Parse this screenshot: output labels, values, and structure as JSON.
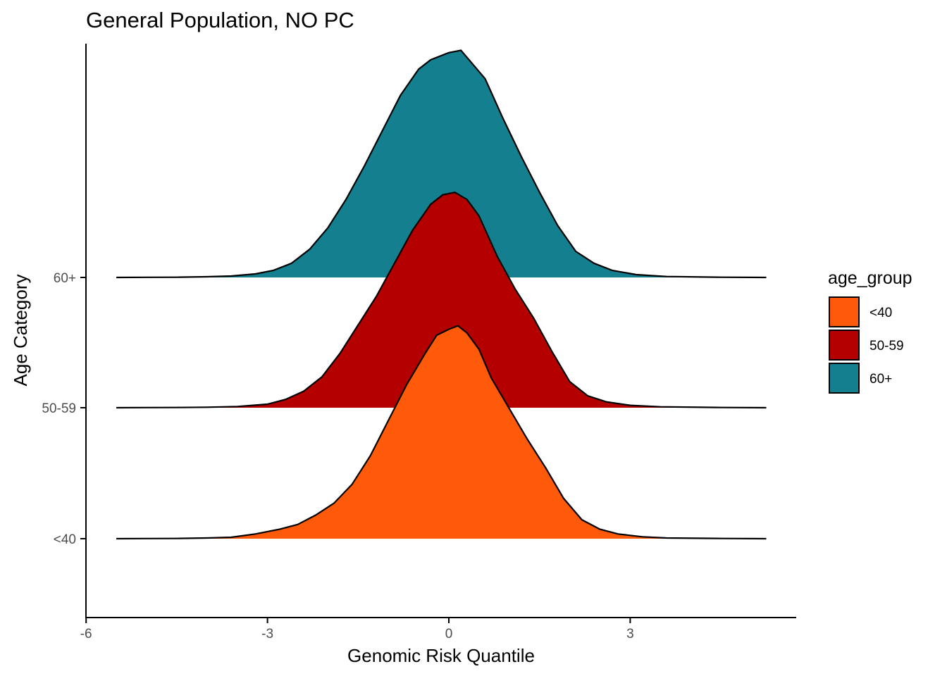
{
  "chart_data": {
    "type": "ridgeline",
    "title": "General Population, NO PC",
    "xlabel": "Genomic Risk Quantile",
    "ylabel": "Age Category",
    "xlim": [
      -6,
      5.8
    ],
    "x_ticks": [
      -6,
      -3,
      0,
      3
    ],
    "x_tick_labels": [
      "-6",
      "-3",
      "0",
      "3"
    ],
    "categories": [
      "<40",
      "50-59",
      "60+"
    ],
    "legend": {
      "title": "age_group",
      "position": "right",
      "entries": [
        "<40",
        "50-59",
        "60+"
      ]
    },
    "grid": false,
    "series": [
      {
        "name": "<40",
        "color": "#FF5A0A",
        "points": [
          [
            -5.5,
            0
          ],
          [
            -5,
            0.0005
          ],
          [
            -4.5,
            0.001
          ],
          [
            -4,
            0.003
          ],
          [
            -3.6,
            0.006
          ],
          [
            -3.2,
            0.02
          ],
          [
            -3,
            0.03
          ],
          [
            -2.8,
            0.04
          ],
          [
            -2.5,
            0.06
          ],
          [
            -2.2,
            0.1
          ],
          [
            -1.9,
            0.15
          ],
          [
            -1.6,
            0.23
          ],
          [
            -1.3,
            0.35
          ],
          [
            -1,
            0.5
          ],
          [
            -0.7,
            0.65
          ],
          [
            -0.4,
            0.78
          ],
          [
            -0.2,
            0.86
          ],
          [
            0,
            0.885
          ],
          [
            0.15,
            0.9
          ],
          [
            0.3,
            0.87
          ],
          [
            0.5,
            0.8
          ],
          [
            0.7,
            0.68
          ],
          [
            1,
            0.55
          ],
          [
            1.3,
            0.42
          ],
          [
            1.6,
            0.3
          ],
          [
            1.9,
            0.17
          ],
          [
            2.2,
            0.08
          ],
          [
            2.5,
            0.04
          ],
          [
            2.8,
            0.02
          ],
          [
            3.2,
            0.008
          ],
          [
            3.6,
            0.003
          ],
          [
            4.5,
            0.001
          ],
          [
            5.25,
            0
          ]
        ]
      },
      {
        "name": "50-59",
        "color": "#B50000",
        "points": [
          [
            -5.5,
            0
          ],
          [
            -5,
            0.0005
          ],
          [
            -4.5,
            0.001
          ],
          [
            -4,
            0.002
          ],
          [
            -3.5,
            0.005
          ],
          [
            -3,
            0.015
          ],
          [
            -2.7,
            0.035
          ],
          [
            -2.4,
            0.07
          ],
          [
            -2.1,
            0.13
          ],
          [
            -1.8,
            0.23
          ],
          [
            -1.5,
            0.35
          ],
          [
            -1.2,
            0.47
          ],
          [
            -0.9,
            0.61
          ],
          [
            -0.6,
            0.75
          ],
          [
            -0.3,
            0.86
          ],
          [
            -0.1,
            0.9
          ],
          [
            0.1,
            0.91
          ],
          [
            0.3,
            0.88
          ],
          [
            0.5,
            0.81
          ],
          [
            0.8,
            0.64
          ],
          [
            1.1,
            0.5
          ],
          [
            1.4,
            0.38
          ],
          [
            1.7,
            0.24
          ],
          [
            2,
            0.11
          ],
          [
            2.3,
            0.05
          ],
          [
            2.6,
            0.025
          ],
          [
            3,
            0.01
          ],
          [
            3.5,
            0.004
          ],
          [
            4.5,
            0.001
          ],
          [
            5.25,
            0
          ]
        ]
      },
      {
        "name": "60+",
        "color": "#137F8F",
        "points": [
          [
            -5.5,
            0
          ],
          [
            -5,
            0.0005
          ],
          [
            -4.5,
            0.001
          ],
          [
            -4,
            0.003
          ],
          [
            -3.6,
            0.006
          ],
          [
            -3.2,
            0.015
          ],
          [
            -2.9,
            0.03
          ],
          [
            -2.6,
            0.06
          ],
          [
            -2.3,
            0.12
          ],
          [
            -2,
            0.21
          ],
          [
            -1.7,
            0.33
          ],
          [
            -1.4,
            0.47
          ],
          [
            -1.1,
            0.62
          ],
          [
            -0.8,
            0.77
          ],
          [
            -0.5,
            0.88
          ],
          [
            -0.3,
            0.92
          ],
          [
            0,
            0.95
          ],
          [
            0.2,
            0.96
          ],
          [
            0.4,
            0.9
          ],
          [
            0.6,
            0.84
          ],
          [
            0.9,
            0.67
          ],
          [
            1.2,
            0.51
          ],
          [
            1.5,
            0.36
          ],
          [
            1.8,
            0.22
          ],
          [
            2.1,
            0.11
          ],
          [
            2.4,
            0.06
          ],
          [
            2.7,
            0.03
          ],
          [
            3.1,
            0.012
          ],
          [
            3.6,
            0.004
          ],
          [
            4.5,
            0.001
          ],
          [
            5.25,
            0
          ]
        ]
      }
    ]
  }
}
